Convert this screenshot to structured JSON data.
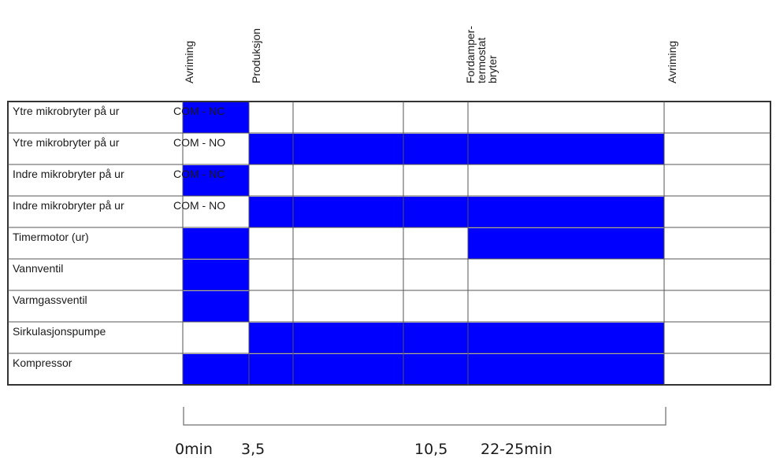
{
  "phase_headers": [
    {
      "lines": [
        "Avriming"
      ]
    },
    {
      "lines": [
        "Produksjon"
      ]
    },
    {
      "lines": [
        "Fordamper-",
        "termostat",
        "bryter"
      ]
    },
    {
      "lines": [
        "Avriming"
      ]
    }
  ],
  "rows": [
    {
      "label": "Ytre mikrobryter på ur",
      "contact": "COM - NC",
      "active": [
        true,
        false,
        false,
        false,
        false,
        false
      ]
    },
    {
      "label": "Ytre mikrobryter på ur",
      "contact": "COM - NO",
      "active": [
        false,
        true,
        true,
        true,
        true,
        false
      ]
    },
    {
      "label": "Indre mikrobryter på ur",
      "contact": "COM - NC",
      "active": [
        true,
        false,
        false,
        false,
        false,
        false
      ]
    },
    {
      "label": "Indre mikrobryter på ur",
      "contact": "COM - NO",
      "active": [
        false,
        true,
        true,
        true,
        true,
        false
      ]
    },
    {
      "label": "Timermotor (ur)",
      "contact": "",
      "active": [
        true,
        false,
        false,
        false,
        true,
        false
      ]
    },
    {
      "label": "Vannventil",
      "contact": "",
      "active": [
        true,
        false,
        false,
        false,
        false,
        false
      ]
    },
    {
      "label": "Varmgassventil",
      "contact": "",
      "active": [
        true,
        false,
        false,
        false,
        false,
        false
      ]
    },
    {
      "label": "Sirkulasjonspumpe",
      "contact": "",
      "active": [
        false,
        true,
        true,
        true,
        true,
        false
      ]
    },
    {
      "label": "Kompressor",
      "contact": "",
      "active": [
        true,
        true,
        true,
        true,
        true,
        false
      ]
    }
  ],
  "time_labels": [
    "0min",
    "3,5",
    "10,5",
    "22-25min"
  ],
  "colors": {
    "active": "#0000ff",
    "grid": "#555555",
    "bracket": "#888888"
  }
}
